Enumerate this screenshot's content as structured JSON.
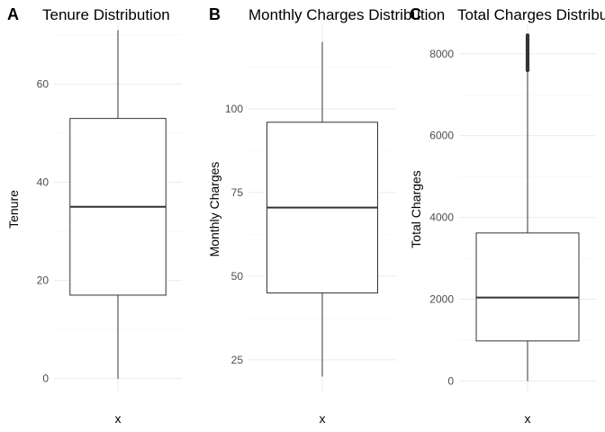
{
  "chart_data": [
    {
      "type": "box",
      "tag": "A",
      "title": "Tenure Distribution",
      "ylabel": "Tenure",
      "xlabel": "",
      "categories": [
        "x"
      ],
      "ylim": [
        -3,
        72
      ],
      "yticks": [
        0,
        20,
        40,
        60
      ],
      "box": {
        "min": 0,
        "q1": 17,
        "median": 35,
        "q3": 53,
        "max": 71
      },
      "outliers": []
    },
    {
      "type": "box",
      "tag": "B",
      "title": "Monthly Charges Distribution",
      "ylabel": "Monthly Charges",
      "xlabel": "",
      "categories": [
        "x"
      ],
      "ylim": [
        15,
        125
      ],
      "yticks": [
        25,
        50,
        75,
        100
      ],
      "box": {
        "min": 20,
        "q1": 45,
        "median": 70.5,
        "q3": 96,
        "max": 120
      },
      "outliers": []
    },
    {
      "type": "box",
      "tag": "C",
      "title": "Total Charges Distribution",
      "ylabel": "Total Charges",
      "xlabel": "",
      "categories": [
        "x"
      ],
      "ylim": [
        -300,
        8700
      ],
      "yticks": [
        0,
        2000,
        4000,
        6000,
        8000
      ],
      "box": {
        "min": 0,
        "q1": 980,
        "median": 2040,
        "q3": 3620,
        "max": 7580
      },
      "outliers": [
        7600,
        7650,
        7700,
        7750,
        7800,
        7850,
        7900,
        7950,
        8000,
        8050,
        8100,
        8150,
        8200,
        8250,
        8300,
        8350,
        8400,
        8450
      ]
    }
  ]
}
